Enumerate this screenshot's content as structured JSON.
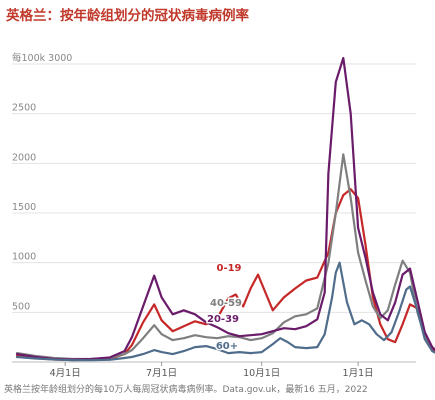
{
  "title": "英格兰：按年龄组划分的冠状病毒病例率",
  "source": "英格兰按年龄组划分的每10万人每周冠状病毒病例率。Data.gov.uk，最新16 五月，2022",
  "chart_data": {
    "type": "line",
    "ylabel": "每100k",
    "ylim": [
      0,
      3000
    ],
    "y_ticks": [
      500,
      1000,
      1500,
      2000,
      2500,
      3000
    ],
    "y_tick_labels": [
      "500",
      "1000",
      "1500",
      "2000",
      "2500",
      "3000"
    ],
    "y_top_label": "每100k 3000",
    "x_range": [
      0,
      106
    ],
    "x_ticks": [
      {
        "x": 13,
        "label": "4月1日"
      },
      {
        "x": 39,
        "label": "7月1日"
      },
      {
        "x": 66,
        "label": "10月1日"
      },
      {
        "x": 92,
        "label": "1月1日"
      },
      {
        "x": 117,
        "label": "4月1日"
      }
    ],
    "grid": true,
    "series": [
      {
        "name": "0-19",
        "color": "#c62828",
        "points": [
          [
            0,
            60
          ],
          [
            5,
            40
          ],
          [
            10,
            25
          ],
          [
            15,
            20
          ],
          [
            20,
            22
          ],
          [
            25,
            30
          ],
          [
            29,
            80
          ],
          [
            31,
            170
          ],
          [
            34,
            400
          ],
          [
            37,
            580
          ],
          [
            39,
            420
          ],
          [
            42,
            310
          ],
          [
            45,
            360
          ],
          [
            48,
            410
          ],
          [
            51,
            380
          ],
          [
            54,
            440
          ],
          [
            57,
            640
          ],
          [
            59,
            680
          ],
          [
            61,
            560
          ],
          [
            63,
            740
          ],
          [
            65,
            880
          ],
          [
            67,
            700
          ],
          [
            69,
            520
          ],
          [
            72,
            650
          ],
          [
            75,
            740
          ],
          [
            78,
            820
          ],
          [
            81,
            850
          ],
          [
            84,
            1100
          ],
          [
            86,
            1500
          ],
          [
            88,
            1680
          ],
          [
            90,
            1740
          ],
          [
            92,
            1650
          ],
          [
            94,
            1180
          ],
          [
            96,
            650
          ],
          [
            98,
            380
          ],
          [
            100,
            230
          ],
          [
            102,
            200
          ],
          [
            104,
            380
          ],
          [
            106,
            580
          ],
          [
            108,
            540
          ],
          [
            110,
            280
          ],
          [
            112,
            130
          ],
          [
            114,
            70
          ]
        ]
      },
      {
        "name": "40-59",
        "color": "#7f7f7f",
        "points": [
          [
            0,
            90
          ],
          [
            5,
            60
          ],
          [
            10,
            40
          ],
          [
            15,
            30
          ],
          [
            20,
            30
          ],
          [
            25,
            40
          ],
          [
            29,
            80
          ],
          [
            31,
            120
          ],
          [
            34,
            240
          ],
          [
            37,
            370
          ],
          [
            39,
            280
          ],
          [
            42,
            220
          ],
          [
            45,
            240
          ],
          [
            48,
            270
          ],
          [
            51,
            250
          ],
          [
            54,
            240
          ],
          [
            57,
            260
          ],
          [
            60,
            250
          ],
          [
            63,
            220
          ],
          [
            66,
            240
          ],
          [
            69,
            290
          ],
          [
            72,
            400
          ],
          [
            75,
            460
          ],
          [
            78,
            480
          ],
          [
            81,
            540
          ],
          [
            84,
            1000
          ],
          [
            86,
            1500
          ],
          [
            88,
            2090
          ],
          [
            90,
            1650
          ],
          [
            92,
            1100
          ],
          [
            94,
            820
          ],
          [
            96,
            560
          ],
          [
            98,
            440
          ],
          [
            100,
            520
          ],
          [
            102,
            780
          ],
          [
            104,
            1020
          ],
          [
            106,
            900
          ],
          [
            108,
            500
          ],
          [
            110,
            260
          ],
          [
            112,
            150
          ],
          [
            114,
            90
          ]
        ]
      },
      {
        "name": "20-39",
        "color": "#6a1b6a",
        "points": [
          [
            0,
            80
          ],
          [
            5,
            50
          ],
          [
            10,
            30
          ],
          [
            15,
            25
          ],
          [
            20,
            30
          ],
          [
            25,
            45
          ],
          [
            29,
            110
          ],
          [
            31,
            250
          ],
          [
            34,
            560
          ],
          [
            37,
            870
          ],
          [
            39,
            650
          ],
          [
            42,
            480
          ],
          [
            45,
            520
          ],
          [
            48,
            480
          ],
          [
            51,
            400
          ],
          [
            54,
            350
          ],
          [
            57,
            290
          ],
          [
            60,
            260
          ],
          [
            63,
            270
          ],
          [
            66,
            280
          ],
          [
            69,
            310
          ],
          [
            72,
            340
          ],
          [
            75,
            330
          ],
          [
            78,
            360
          ],
          [
            81,
            430
          ],
          [
            83,
            700
          ],
          [
            84,
            1900
          ],
          [
            86,
            2820
          ],
          [
            88,
            3060
          ],
          [
            90,
            2500
          ],
          [
            92,
            1350
          ],
          [
            94,
            1050
          ],
          [
            96,
            700
          ],
          [
            98,
            480
          ],
          [
            100,
            420
          ],
          [
            102,
            600
          ],
          [
            104,
            880
          ],
          [
            106,
            940
          ],
          [
            108,
            620
          ],
          [
            110,
            300
          ],
          [
            112,
            150
          ],
          [
            114,
            70
          ]
        ]
      },
      {
        "name": "60+",
        "color": "#4f6d8a",
        "points": [
          [
            0,
            50
          ],
          [
            5,
            35
          ],
          [
            10,
            25
          ],
          [
            15,
            18
          ],
          [
            20,
            18
          ],
          [
            25,
            22
          ],
          [
            29,
            40
          ],
          [
            31,
            50
          ],
          [
            34,
            80
          ],
          [
            37,
            120
          ],
          [
            39,
            100
          ],
          [
            42,
            80
          ],
          [
            45,
            110
          ],
          [
            48,
            150
          ],
          [
            51,
            160
          ],
          [
            54,
            130
          ],
          [
            57,
            90
          ],
          [
            60,
            100
          ],
          [
            63,
            90
          ],
          [
            66,
            100
          ],
          [
            69,
            180
          ],
          [
            71,
            240
          ],
          [
            73,
            200
          ],
          [
            75,
            150
          ],
          [
            78,
            140
          ],
          [
            81,
            150
          ],
          [
            83,
            280
          ],
          [
            85,
            650
          ],
          [
            86,
            900
          ],
          [
            87,
            1000
          ],
          [
            89,
            600
          ],
          [
            91,
            380
          ],
          [
            93,
            420
          ],
          [
            95,
            380
          ],
          [
            97,
            280
          ],
          [
            99,
            220
          ],
          [
            101,
            300
          ],
          [
            103,
            500
          ],
          [
            105,
            730
          ],
          [
            106,
            760
          ],
          [
            108,
            520
          ],
          [
            110,
            230
          ],
          [
            112,
            110
          ],
          [
            114,
            70
          ]
        ]
      }
    ],
    "series_labels": [
      {
        "series": "0-19",
        "label": "0-19"
      },
      {
        "series": "40-59",
        "label": "40-59"
      },
      {
        "series": "20-39",
        "label": "20-39"
      },
      {
        "series": "60+",
        "label": "60+"
      }
    ]
  }
}
